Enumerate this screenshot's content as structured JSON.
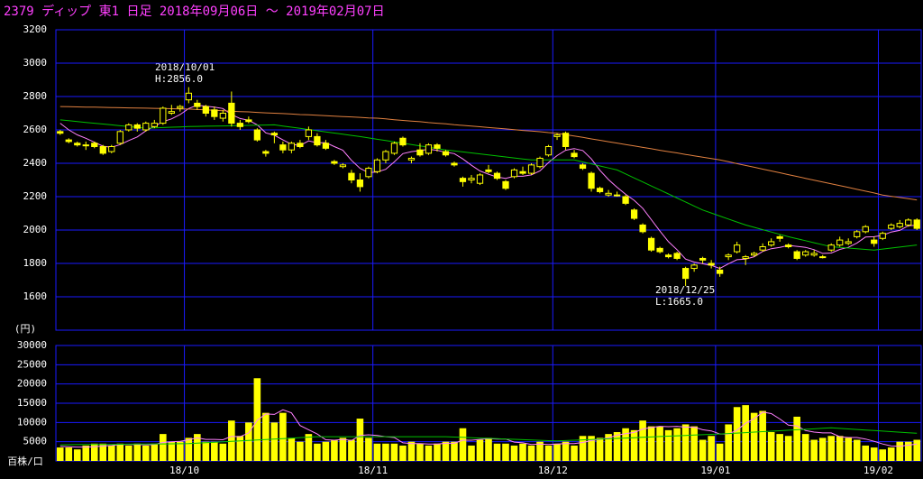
{
  "chart_data": {
    "type": "candlestick",
    "title": "2379 ディップ 東1 日足 2018年09月06日 〜 2019年02月07日",
    "y_unit": "(円)",
    "annotations": [
      {
        "date": "2018/10/01",
        "text": "H:2856.0"
      },
      {
        "date": "2018/12/25",
        "text": "L:1665.0"
      }
    ],
    "categories": [
      null,
      null,
      null,
      null,
      null,
      null,
      null,
      null,
      null,
      null,
      null,
      null,
      null,
      null,
      null,
      "18/10",
      null,
      null,
      null,
      null,
      null,
      null,
      null,
      null,
      null,
      null,
      null,
      null,
      null,
      null,
      null,
      null,
      null,
      null,
      null,
      null,
      null,
      "18/11",
      null,
      null,
      null,
      null,
      null,
      null,
      null,
      null,
      null,
      null,
      null,
      null,
      null,
      null,
      null,
      null,
      null,
      null,
      null,
      null,
      "18/12",
      null,
      null,
      null,
      null,
      null,
      null,
      null,
      null,
      null,
      null,
      null,
      null,
      null,
      null,
      null,
      null,
      null,
      null,
      "19/01",
      null,
      null,
      null,
      null,
      null,
      null,
      null,
      null,
      null,
      null,
      null,
      null,
      null,
      null,
      null,
      null,
      null,
      null,
      "19/02",
      null,
      null,
      null,
      null
    ],
    "candles": [
      [
        2590,
        2600,
        2570,
        2580
      ],
      [
        2540,
        2550,
        2520,
        2530
      ],
      [
        2520,
        2530,
        2500,
        2510
      ],
      [
        2510,
        2530,
        2480,
        2510
      ],
      [
        2520,
        2530,
        2490,
        2500
      ],
      [
        2500,
        2510,
        2450,
        2460
      ],
      [
        2470,
        2510,
        2460,
        2500
      ],
      [
        2520,
        2600,
        2510,
        2590
      ],
      [
        2600,
        2640,
        2590,
        2630
      ],
      [
        2630,
        2640,
        2590,
        2610
      ],
      [
        2600,
        2650,
        2590,
        2640
      ],
      [
        2620,
        2660,
        2610,
        2640
      ],
      [
        2640,
        2740,
        2630,
        2730
      ],
      [
        2700,
        2750,
        2690,
        2710
      ],
      [
        2730,
        2750,
        2710,
        2740
      ],
      [
        2780,
        2856,
        2760,
        2820
      ],
      [
        2760,
        2780,
        2720,
        2740
      ],
      [
        2740,
        2750,
        2680,
        2700
      ],
      [
        2720,
        2740,
        2660,
        2680
      ],
      [
        2670,
        2720,
        2650,
        2700
      ],
      [
        2760,
        2830,
        2620,
        2640
      ],
      [
        2640,
        2660,
        2600,
        2620
      ],
      [
        2660,
        2680,
        2640,
        2650
      ],
      [
        2600,
        2610,
        2530,
        2540
      ],
      [
        2470,
        2480,
        2440,
        2460
      ],
      [
        2580,
        2590,
        2520,
        2570
      ],
      [
        2510,
        2530,
        2460,
        2480
      ],
      [
        2480,
        2530,
        2460,
        2520
      ],
      [
        2520,
        2540,
        2490,
        2500
      ],
      [
        2560,
        2620,
        2540,
        2600
      ],
      [
        2560,
        2580,
        2500,
        2510
      ],
      [
        2520,
        2540,
        2480,
        2490
      ],
      [
        2410,
        2420,
        2390,
        2400
      ],
      [
        2380,
        2400,
        2370,
        2390
      ],
      [
        2340,
        2360,
        2280,
        2300
      ],
      [
        2300,
        2340,
        2230,
        2260
      ],
      [
        2320,
        2380,
        2310,
        2370
      ],
      [
        2350,
        2430,
        2340,
        2420
      ],
      [
        2420,
        2480,
        2400,
        2470
      ],
      [
        2460,
        2530,
        2450,
        2520
      ],
      [
        2550,
        2560,
        2500,
        2510
      ],
      [
        2420,
        2440,
        2400,
        2430
      ],
      [
        2480,
        2520,
        2440,
        2450
      ],
      [
        2460,
        2520,
        2450,
        2510
      ],
      [
        2510,
        2520,
        2470,
        2490
      ],
      [
        2470,
        2480,
        2440,
        2450
      ],
      [
        2400,
        2410,
        2380,
        2390
      ],
      [
        2310,
        2320,
        2260,
        2290
      ],
      [
        2300,
        2330,
        2280,
        2310
      ],
      [
        2280,
        2340,
        2270,
        2330
      ],
      [
        2360,
        2390,
        2340,
        2350
      ],
      [
        2340,
        2350,
        2300,
        2310
      ],
      [
        2290,
        2300,
        2240,
        2250
      ],
      [
        2320,
        2370,
        2310,
        2360
      ],
      [
        2350,
        2380,
        2330,
        2340
      ],
      [
        2340,
        2400,
        2330,
        2390
      ],
      [
        2380,
        2440,
        2370,
        2430
      ],
      [
        2450,
        2510,
        2440,
        2500
      ],
      [
        2560,
        2580,
        2540,
        2570
      ],
      [
        2580,
        2590,
        2480,
        2500
      ],
      [
        2460,
        2480,
        2430,
        2440
      ],
      [
        2390,
        2400,
        2360,
        2370
      ],
      [
        2340,
        2350,
        2230,
        2250
      ],
      [
        2250,
        2260,
        2220,
        2230
      ],
      [
        2210,
        2240,
        2200,
        2220
      ],
      [
        2210,
        2230,
        2200,
        2210
      ],
      [
        2200,
        2210,
        2150,
        2160
      ],
      [
        2120,
        2130,
        2060,
        2070
      ],
      [
        2030,
        2040,
        1980,
        1990
      ],
      [
        1950,
        1960,
        1870,
        1880
      ],
      [
        1890,
        1900,
        1860,
        1870
      ],
      [
        1850,
        1860,
        1830,
        1840
      ],
      [
        1860,
        1870,
        1820,
        1830
      ],
      [
        1770,
        1780,
        1665,
        1710
      ],
      [
        1770,
        1800,
        1750,
        1790
      ],
      [
        1830,
        1840,
        1800,
        1820
      ],
      [
        1800,
        1820,
        1770,
        1790
      ],
      [
        1760,
        1780,
        1720,
        1740
      ],
      [
        1840,
        1860,
        1820,
        1850
      ],
      [
        1870,
        1930,
        1860,
        1910
      ],
      [
        1830,
        1850,
        1790,
        1840
      ],
      [
        1850,
        1870,
        1840,
        1860
      ],
      [
        1880,
        1920,
        1870,
        1900
      ],
      [
        1910,
        1950,
        1900,
        1930
      ],
      [
        1960,
        1970,
        1930,
        1950
      ],
      [
        1910,
        1920,
        1890,
        1900
      ],
      [
        1870,
        1880,
        1820,
        1830
      ],
      [
        1850,
        1880,
        1840,
        1870
      ],
      [
        1850,
        1880,
        1840,
        1860
      ],
      [
        1840,
        1850,
        1830,
        1840
      ],
      [
        1880,
        1920,
        1870,
        1910
      ],
      [
        1910,
        1960,
        1900,
        1940
      ],
      [
        1920,
        1950,
        1910,
        1930
      ],
      [
        1960,
        2000,
        1950,
        1990
      ],
      [
        1990,
        2030,
        1980,
        2020
      ],
      [
        1940,
        1960,
        1900,
        1920
      ],
      [
        1950,
        1990,
        1940,
        1980
      ],
      [
        2010,
        2040,
        2000,
        2030
      ],
      [
        2020,
        2060,
        2010,
        2040
      ],
      [
        2030,
        2070,
        2020,
        2060
      ],
      [
        2060,
        2070,
        2000,
        2010
      ]
    ],
    "candle_color": "#ffff00",
    "series": [
      {
        "color": "#ff80ff",
        "values": [
          2640,
          2600,
          2570,
          2550,
          2526,
          2502,
          2496,
          2512,
          2536,
          2558,
          2594,
          2622,
          2650,
          2666,
          2692,
          2728,
          2748,
          2742,
          2736,
          2728,
          2692,
          2668,
          2658,
          2630,
          2582,
          2568,
          2540,
          2514,
          2506,
          2534,
          2522,
          2524,
          2500,
          2478,
          2418,
          2370,
          2344,
          2348,
          2364,
          2408,
          2458,
          2470,
          2476,
          2484,
          2478,
          2466,
          2458,
          2426,
          2388,
          2354,
          2334,
          2318,
          2310,
          2322,
          2322,
          2330,
          2354,
          2404,
          2446,
          2478,
          2488,
          2476,
          2426,
          2358,
          2302,
          2256,
          2214,
          2178,
          2130,
          2062,
          1994,
          1930,
          1882,
          1826,
          1808,
          1798,
          1788,
          1770,
          1798,
          1822,
          1826,
          1840,
          1872,
          1888,
          1896,
          1908,
          1902,
          1896,
          1882,
          1860,
          1862,
          1884,
          1896,
          1922,
          1958,
          1960,
          1968,
          1988,
          1998,
          2026,
          2028
        ]
      },
      {
        "color": "#00c000",
        "values": [
          2660,
          2655,
          2650,
          2645,
          2640,
          2635,
          2630,
          2625,
          2620,
          2615,
          2610,
          2612,
          2614,
          2616,
          2618,
          2620,
          2621,
          2622,
          2623,
          2624,
          2625,
          2626,
          2627,
          2628,
          2629,
          2630,
          2623,
          2616,
          2609,
          2602,
          2595,
          2588,
          2581,
          2574,
          2567,
          2560,
          2552,
          2544,
          2536,
          2528,
          2520,
          2512,
          2504,
          2496,
          2488,
          2480,
          2474,
          2468,
          2462,
          2456,
          2450,
          2444,
          2438,
          2432,
          2426,
          2420,
          2420,
          2420,
          2420,
          2420,
          2420,
          2408,
          2396,
          2384,
          2372,
          2360,
          2336,
          2312,
          2288,
          2264,
          2240,
          2216,
          2192,
          2168,
          2144,
          2120,
          2102,
          2084,
          2066,
          2048,
          2030,
          2016,
          2002,
          1988,
          1974,
          1960,
          1948,
          1936,
          1924,
          1912,
          1900,
          1896,
          1892,
          1888,
          1884,
          1880,
          1886,
          1892,
          1898,
          1904,
          1910
        ]
      },
      {
        "color": "#e08040",
        "values": [
          2740,
          2739,
          2738,
          2737,
          2736,
          2735,
          2734,
          2733,
          2732,
          2731,
          2730,
          2729,
          2728,
          2727,
          2726,
          2725,
          2722,
          2720,
          2718,
          2715,
          2712,
          2710,
          2708,
          2705,
          2702,
          2700,
          2698,
          2695,
          2692,
          2690,
          2688,
          2685,
          2682,
          2680,
          2678,
          2675,
          2672,
          2670,
          2666,
          2661,
          2657,
          2653,
          2649,
          2644,
          2640,
          2636,
          2631,
          2627,
          2623,
          2619,
          2614,
          2610,
          2606,
          2601,
          2597,
          2593,
          2589,
          2584,
          2580,
          2572,
          2563,
          2555,
          2546,
          2538,
          2529,
          2521,
          2512,
          2504,
          2495,
          2487,
          2478,
          2470,
          2462,
          2453,
          2445,
          2436,
          2428,
          2420,
          2409,
          2398,
          2387,
          2376,
          2365,
          2354,
          2343,
          2332,
          2321,
          2310,
          2299,
          2288,
          2277,
          2266,
          2255,
          2244,
          2233,
          2222,
          2210,
          2202,
          2195,
          2188,
          2180
        ]
      }
    ],
    "ylim": [
      1400,
      3200
    ],
    "yticks": [
      1600,
      1800,
      2000,
      2200,
      2400,
      2600,
      2800,
      3000,
      3200
    ],
    "grid": true,
    "volume": {
      "unit": "百株/口",
      "color": "#ffff00",
      "values": [
        3500,
        3500,
        3000,
        4000,
        4500,
        4500,
        4000,
        4500,
        4000,
        4500,
        4000,
        4500,
        7000,
        5000,
        5000,
        6000,
        7000,
        5000,
        5000,
        4500,
        10500,
        6500,
        10000,
        21500,
        12500,
        10000,
        12500,
        6000,
        5000,
        7000,
        4500,
        5000,
        5500,
        6000,
        5500,
        11000,
        6000,
        4500,
        4500,
        4500,
        4000,
        5000,
        4500,
        4000,
        4500,
        5000,
        5000,
        8500,
        4000,
        5500,
        6000,
        4500,
        4500,
        4000,
        4500,
        4000,
        5000,
        4000,
        4500,
        5000,
        4000,
        6500,
        6500,
        6000,
        7000,
        7500,
        8500,
        8000,
        10500,
        9000,
        9000,
        8000,
        8500,
        9500,
        9000,
        5500,
        6500,
        4500,
        9500,
        14000,
        14500,
        12500,
        13000,
        7500,
        7000,
        6500,
        11500,
        7000,
        5500,
        6000,
        6500,
        6500,
        6000,
        5500,
        4000,
        3500,
        3000,
        3500,
        5000,
        5000,
        5500
      ],
      "series": [
        {
          "color": "#ff80ff",
          "values": [
            3800,
            3700,
            3600,
            3600,
            3700,
            3900,
            4000,
            4300,
            4300,
            4300,
            4200,
            4300,
            4800,
            5000,
            5100,
            5500,
            6000,
            5600,
            5600,
            5500,
            6400,
            6300,
            7300,
            10600,
            12200,
            12100,
            13300,
            12500,
            9200,
            8100,
            7000,
            5500,
            5400,
            5600,
            5300,
            6600,
            6800,
            6600,
            6300,
            6100,
            4700,
            4500,
            4500,
            4400,
            4400,
            4600,
            4600,
            5400,
            5400,
            5600,
            5800,
            5700,
            5700,
            4900,
            4700,
            4300,
            4400,
            4300,
            4400,
            4500,
            4500,
            4800,
            5300,
            5600,
            6000,
            6700,
            7100,
            7400,
            8300,
            8700,
            9000,
            8900,
            9000,
            8800,
            8800,
            8100,
            7800,
            7000,
            7000,
            8000,
            9800,
            11000,
            12700,
            12300,
            10900,
            9300,
            9100,
            7900,
            7500,
            7300,
            7300,
            6300,
            6100,
            6100,
            5700,
            5100,
            4400,
            3900,
            3800,
            4100,
            4400
          ]
        },
        {
          "color": "#00c000",
          "values": [
            4200,
            4220,
            4240,
            4260,
            4280,
            4300,
            4320,
            4340,
            4360,
            4380,
            4400,
            4420,
            4440,
            4460,
            4480,
            4500,
            4620,
            4740,
            4860,
            4980,
            5100,
            5220,
            5340,
            5460,
            5580,
            5700,
            5820,
            5940,
            6060,
            6180,
            6300,
            6300,
            6300,
            6300,
            6300,
            6300,
            6300,
            6300,
            6300,
            6300,
            6300,
            6300,
            6300,
            6300,
            6300,
            6300,
            6215,
            6130,
            6045,
            5960,
            5875,
            5790,
            5705,
            5620,
            5535,
            5450,
            5365,
            5280,
            5200,
            5295,
            5390,
            5485,
            5580,
            5675,
            5770,
            5865,
            5960,
            6055,
            6150,
            6245,
            6340,
            6435,
            6530,
            6625,
            6720,
            6815,
            6910,
            7000,
            7123,
            7246,
            7369,
            7492,
            7615,
            7738,
            7861,
            7984,
            8107,
            8230,
            8353,
            8476,
            8600,
            8460,
            8320,
            8180,
            8040,
            7900,
            7760,
            7620,
            7480,
            7340,
            7200
          ]
        }
      ],
      "ylim": [
        0,
        30000
      ],
      "yticks": [
        5000,
        10000,
        15000,
        20000,
        25000,
        30000
      ]
    }
  }
}
